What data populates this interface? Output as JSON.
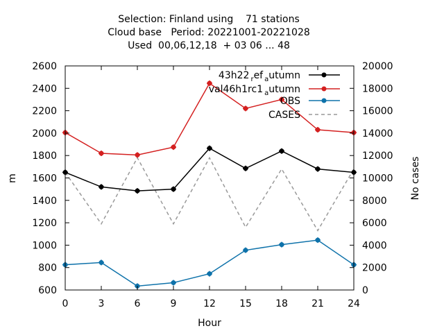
{
  "chart_data": {
    "type": "line",
    "title_lines": [
      "Selection: Finland using    71 stations",
      "Cloud base   Period: 20221001-20221028",
      "Used  00,06,12,18  + 03 06 ... 48"
    ],
    "xlabel": "Hour",
    "ylabel": "m",
    "y2label": "No cases",
    "x": [
      0,
      3,
      6,
      9,
      12,
      15,
      18,
      21,
      24
    ],
    "xlim": [
      0,
      24
    ],
    "ylim": [
      600,
      2600
    ],
    "y2lim": [
      0,
      20000
    ],
    "xticks": [
      "0",
      "3",
      "6",
      "9",
      "12",
      "15",
      "18",
      "21",
      "24"
    ],
    "yticks": [
      "600",
      "800",
      "1000",
      "1200",
      "1400",
      "1600",
      "1800",
      "2000",
      "2200",
      "2400",
      "2600"
    ],
    "y2ticks": [
      "0",
      "2000",
      "4000",
      "6000",
      "8000",
      "10000",
      "12000",
      "14000",
      "16000",
      "18000",
      "20000"
    ],
    "legend_position": "top-right",
    "grid": false,
    "series": [
      {
        "name_main": "43h22",
        "name_parts": [
          [
            "r",
            "ef"
          ],
          [
            "a",
            "utumn"
          ]
        ],
        "color": "#000000",
        "axis": "left",
        "dashed": false,
        "marker": true,
        "values": [
          1650,
          1520,
          1485,
          1500,
          1865,
          1685,
          1840,
          1680,
          1650
        ]
      },
      {
        "name_main": "val46h1rc1",
        "name_parts": [
          [
            "a",
            "utumn"
          ]
        ],
        "color": "#d42020",
        "axis": "left",
        "dashed": false,
        "marker": true,
        "values": [
          2005,
          1820,
          1805,
          1875,
          2445,
          2220,
          2300,
          2030,
          2005
        ]
      },
      {
        "name_main": "OBS",
        "name_parts": [],
        "color": "#0e72aa",
        "axis": "left",
        "dashed": false,
        "marker": true,
        "values": [
          825,
          845,
          635,
          665,
          745,
          955,
          1005,
          1045,
          825
        ]
      },
      {
        "name_main": "CASES",
        "name_parts": [],
        "color": "#999999",
        "axis": "right",
        "dashed": true,
        "marker": false,
        "values": [
          10500,
          5900,
          11800,
          5900,
          11800,
          5600,
          10800,
          5300,
          10800
        ]
      }
    ]
  }
}
